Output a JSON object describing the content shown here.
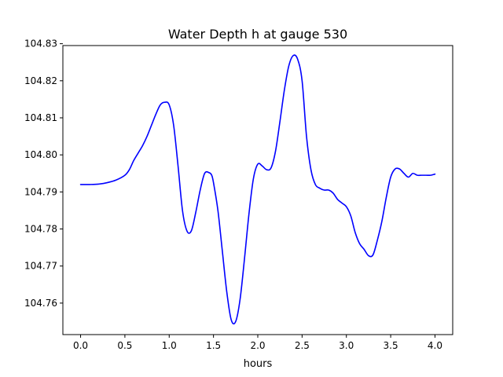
{
  "chart_data": {
    "type": "line",
    "title": "Water Depth h at gauge 530",
    "xlabel": "hours",
    "ylabel": "",
    "xlim": [
      -0.2,
      4.2
    ],
    "ylim": [
      104.7515,
      104.8295
    ],
    "grid": false,
    "x_ticks": [
      0.0,
      0.5,
      1.0,
      1.5,
      2.0,
      2.5,
      3.0,
      3.5,
      4.0
    ],
    "x_tick_labels": [
      "0.0",
      "0.5",
      "1.0",
      "1.5",
      "2.0",
      "2.5",
      "3.0",
      "3.5",
      "4.0"
    ],
    "y_ticks": [
      104.76,
      104.77,
      104.78,
      104.79,
      104.8,
      104.81,
      104.82,
      104.83
    ],
    "y_tick_labels": [
      "104.76",
      "104.77",
      "104.78",
      "104.79",
      "104.80",
      "104.81",
      "104.82",
      "104.83"
    ],
    "series": [
      {
        "color": "#0000ff",
        "x": [
          0.0,
          0.1,
          0.2,
          0.3,
          0.4,
          0.5,
          0.55,
          0.6,
          0.65,
          0.7,
          0.75,
          0.8,
          0.85,
          0.9,
          0.95,
          1.0,
          1.05,
          1.1,
          1.15,
          1.2,
          1.25,
          1.3,
          1.35,
          1.4,
          1.45,
          1.48,
          1.5,
          1.55,
          1.6,
          1.65,
          1.7,
          1.75,
          1.8,
          1.85,
          1.9,
          1.95,
          2.0,
          2.05,
          2.1,
          2.15,
          2.2,
          2.25,
          2.3,
          2.35,
          2.4,
          2.45,
          2.5,
          2.55,
          2.6,
          2.65,
          2.7,
          2.75,
          2.8,
          2.85,
          2.9,
          2.95,
          3.0,
          3.05,
          3.1,
          3.15,
          3.2,
          3.25,
          3.3,
          3.35,
          3.4,
          3.45,
          3.5,
          3.55,
          3.6,
          3.65,
          3.7,
          3.75,
          3.8,
          3.85,
          3.9,
          3.95,
          4.0
        ],
        "y": [
          104.792,
          104.792,
          104.7921,
          104.7925,
          104.7932,
          104.7945,
          104.796,
          104.7985,
          104.8005,
          104.8025,
          104.805,
          104.808,
          104.811,
          104.8135,
          104.8142,
          104.8135,
          104.808,
          104.797,
          104.785,
          104.7795,
          104.7795,
          104.7845,
          104.7905,
          104.795,
          104.7952,
          104.7945,
          104.7925,
          104.785,
          104.774,
          104.763,
          104.7555,
          104.755,
          104.761,
          104.772,
          104.784,
          104.7935,
          104.7975,
          104.797,
          104.796,
          104.7965,
          104.801,
          104.809,
          104.8175,
          104.824,
          104.8268,
          104.8258,
          104.82,
          104.805,
          104.796,
          104.792,
          104.791,
          104.7905,
          104.7905,
          104.7897,
          104.788,
          104.787,
          104.786,
          104.7835,
          104.779,
          104.776,
          104.7745,
          104.7728,
          104.773,
          104.777,
          104.782,
          104.7885,
          104.794,
          104.7962,
          104.7962,
          104.795,
          104.794,
          104.795,
          104.7945,
          104.7945,
          104.7945,
          104.7945,
          104.7948
        ]
      }
    ]
  }
}
